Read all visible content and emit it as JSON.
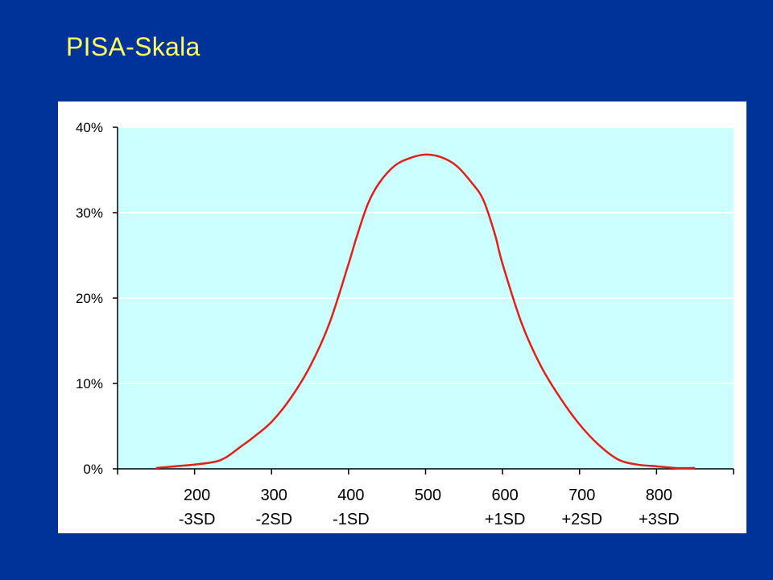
{
  "slide": {
    "title": "PISA-Skala"
  },
  "colors": {
    "background": "#003399",
    "title": "#ffff66",
    "plot_area": "#ccffff",
    "grid": "#ffffff",
    "curve": "#e0201b",
    "axis": "#000000"
  },
  "chart_data": {
    "type": "line",
    "title": "",
    "xlabel": "",
    "ylabel": "",
    "xlim": [
      100,
      900
    ],
    "ylim": [
      0,
      40
    ],
    "y_ticks": [
      0,
      10,
      20,
      30,
      40
    ],
    "y_tick_labels": [
      "0%",
      "10%",
      "20%",
      "30%",
      "40%"
    ],
    "x_ticks": [
      200,
      300,
      400,
      500,
      600,
      700,
      800
    ],
    "x_tick_labels": [
      "200",
      "300",
      "400",
      "500",
      "600",
      "700",
      "800"
    ],
    "sd_labels": [
      {
        "x": 200,
        "label": "-3SD"
      },
      {
        "x": 300,
        "label": "-2SD"
      },
      {
        "x": 400,
        "label": "-1SD"
      },
      {
        "x": 600,
        "label": "+1SD"
      },
      {
        "x": 700,
        "label": "+2SD"
      },
      {
        "x": 800,
        "label": "+3SD"
      }
    ],
    "grid": true,
    "legend": "none",
    "series": [
      {
        "x": [
          150,
          175,
          200,
          225,
          240,
          260,
          275,
          300,
          325,
          350,
          375,
          400,
          410,
          425,
          440,
          460,
          480,
          500,
          520,
          540,
          560,
          575,
          590,
          600,
          625,
          650,
          675,
          700,
          725,
          750,
          775,
          800,
          825,
          850
        ],
        "values": [
          0.1,
          0.3,
          0.5,
          0.8,
          1.3,
          2.6,
          3.6,
          5.5,
          8.3,
          12.0,
          17.0,
          24.0,
          27.0,
          31.0,
          33.5,
          35.5,
          36.4,
          36.8,
          36.5,
          35.5,
          33.5,
          31.5,
          27.5,
          24.0,
          17.0,
          12.0,
          8.3,
          5.2,
          2.8,
          1.1,
          0.5,
          0.3,
          0.1,
          0.1
        ]
      }
    ]
  }
}
